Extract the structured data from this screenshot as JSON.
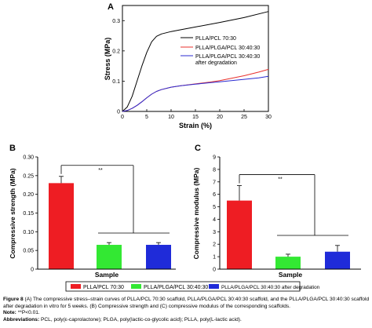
{
  "chart_data": [
    {
      "type": "line",
      "panel_letter": "A",
      "xlabel": "Strain (%)",
      "ylabel": "Stress (MPa)",
      "xlim": [
        0,
        30
      ],
      "ylim": [
        0,
        0.35
      ],
      "xticks": [
        "0",
        "5",
        "10",
        "15",
        "20",
        "25",
        "30"
      ],
      "yticks": [
        "0",
        "0.1",
        "0.2",
        "0.3"
      ],
      "legend_position": "center-right",
      "series": [
        {
          "name": "PLLA/PCL 70:30",
          "color": "#000000",
          "x": [
            0,
            1,
            2,
            3,
            4,
            5,
            6,
            7,
            8,
            10,
            12,
            15,
            20,
            25,
            30
          ],
          "y": [
            0,
            0.015,
            0.05,
            0.1,
            0.15,
            0.195,
            0.23,
            0.248,
            0.256,
            0.264,
            0.27,
            0.279,
            0.294,
            0.31,
            0.33
          ]
        },
        {
          "name": "PLLA/PLGA/PCL 30:40:30",
          "color": "#e8302c",
          "x": [
            0,
            1,
            2,
            3,
            4,
            5,
            6,
            7,
            8,
            10,
            12,
            15,
            18,
            20,
            22,
            25,
            28,
            30
          ],
          "y": [
            0,
            0.003,
            0.01,
            0.02,
            0.032,
            0.045,
            0.057,
            0.066,
            0.072,
            0.08,
            0.085,
            0.091,
            0.097,
            0.102,
            0.108,
            0.118,
            0.13,
            0.139
          ]
        },
        {
          "name": "PLLA/PLGA/PCL 30:40:30 after degradation",
          "color": "#2b2bd1",
          "x": [
            0,
            1,
            2,
            3,
            4,
            5,
            6,
            7,
            8,
            10,
            12,
            15,
            18,
            20,
            22,
            25,
            28,
            30
          ],
          "y": [
            0,
            0.003,
            0.01,
            0.02,
            0.032,
            0.045,
            0.057,
            0.066,
            0.072,
            0.08,
            0.085,
            0.09,
            0.095,
            0.098,
            0.101,
            0.106,
            0.111,
            0.116
          ]
        }
      ]
    },
    {
      "type": "bar",
      "panel_letter": "B",
      "xlabel": "Sample",
      "ylabel": "Compressive strength (MPa)",
      "ylim": [
        0,
        0.3
      ],
      "yticks": [
        "0",
        "0.05",
        "0.10",
        "0.15",
        "0.20",
        "0.25",
        "0.30"
      ],
      "values": [
        0.23,
        0.065,
        0.065
      ],
      "errors": [
        0.018,
        0.006,
        0.006
      ],
      "colors": [
        "#ee1d23",
        "#33e833",
        "#1f2bd9"
      ],
      "significance": "**"
    },
    {
      "type": "bar",
      "panel_letter": "C",
      "xlabel": "Sample",
      "ylabel": "Compressive modulus (MPa)",
      "ylim": [
        0,
        9
      ],
      "yticks": [
        "0",
        "1",
        "2",
        "3",
        "4",
        "5",
        "6",
        "7",
        "8",
        "9"
      ],
      "values": [
        5.5,
        1.0,
        1.4
      ],
      "errors": [
        1.2,
        0.2,
        0.5
      ],
      "colors": [
        "#ee1d23",
        "#33e833",
        "#1f2bd9"
      ],
      "significance": "**"
    }
  ],
  "legend_bottom": [
    {
      "label": "PLLA/PCL 70:30",
      "color": "#ee1d23"
    },
    {
      "label": "PLLA/PLGA/PCL 30:40:30",
      "color": "#33e833"
    },
    {
      "label": "PLLA/PLGA/PCL 30:40:30 after degradation",
      "color": "#1f2bd9"
    }
  ],
  "caption": {
    "figure_label": "Figure 8",
    "text": "(A) The compressive stress–strain curves of PLLA/PCL 70:30 scaffold, PLLA/PLGA/PCL 30:40:30 scaffold, and the PLLA/PLGA/PCL 30:40:30 scaffold after degradation in vitro for 5 weeks. (B) Compressive strength and (C) compressive modulus of the corresponding scaffolds.",
    "note_label": "Note:",
    "note_text": "**P<0.01.",
    "abbrev_label": "Abbreviations:",
    "abbrev_text": "PCL, poly(ε-caprolactone); PLGA, poly(lactic-co-glycolic acid); PLLA, poly(L-lactic acid)."
  }
}
